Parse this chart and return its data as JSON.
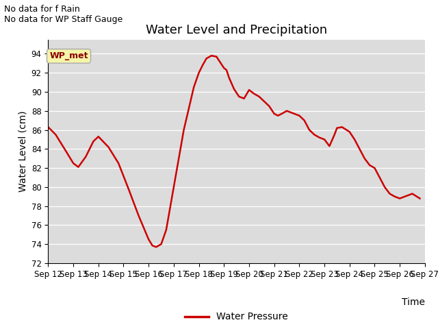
{
  "title": "Water Level and Precipitation",
  "xlabel": "Time",
  "ylabel": "Water Level (cm)",
  "ylim": [
    72,
    95.5
  ],
  "yticks": [
    72,
    74,
    76,
    78,
    80,
    82,
    84,
    86,
    88,
    90,
    92,
    94
  ],
  "background_color": "#dcdcdc",
  "line_color": "#cc0000",
  "line_width": 1.8,
  "legend_label": "Water Pressure",
  "annotation_text1": "No data for f Rain",
  "annotation_text2": "No data for WP Staff Gauge",
  "wp_met_label": "WP_met",
  "x_labels": [
    "Sep 12",
    "Sep 13",
    "Sep 14",
    "Sep 15",
    "Sep 16",
    "Sep 17",
    "Sep 18",
    "Sep 19",
    "Sep 20",
    "Sep 21",
    "Sep 22",
    "Sep 23",
    "Sep 24",
    "Sep 25",
    "Sep 26",
    "Sep 27"
  ],
  "x_values": [
    12,
    13,
    14,
    15,
    16,
    17,
    18,
    19,
    20,
    21,
    22,
    23,
    24,
    25,
    26,
    27
  ],
  "water_pressure_x": [
    12.0,
    12.3,
    12.7,
    13.0,
    13.2,
    13.5,
    13.8,
    14.0,
    14.4,
    14.8,
    15.2,
    15.6,
    16.0,
    16.15,
    16.3,
    16.5,
    16.7,
    17.0,
    17.4,
    17.8,
    18.0,
    18.15,
    18.3,
    18.5,
    18.7,
    19.0,
    19.1,
    19.2,
    19.4,
    19.6,
    19.8,
    20.0,
    20.2,
    20.4,
    20.6,
    20.8,
    21.0,
    21.15,
    21.3,
    21.5,
    21.7,
    22.0,
    22.2,
    22.4,
    22.6,
    22.8,
    23.0,
    23.2,
    23.4,
    23.5,
    23.7,
    24.0,
    24.2,
    24.4,
    24.6,
    24.8,
    25.0,
    25.2,
    25.4,
    25.6,
    25.8,
    26.0,
    26.2,
    26.5,
    26.8
  ],
  "water_pressure_y": [
    86.3,
    85.5,
    83.8,
    82.5,
    82.1,
    83.2,
    84.8,
    85.3,
    84.2,
    82.5,
    79.8,
    77.0,
    74.5,
    73.85,
    73.7,
    74.0,
    75.5,
    80.0,
    86.0,
    90.5,
    92.0,
    92.8,
    93.5,
    93.8,
    93.7,
    92.5,
    92.3,
    91.5,
    90.3,
    89.5,
    89.3,
    90.2,
    89.8,
    89.5,
    89.0,
    88.5,
    87.7,
    87.5,
    87.7,
    88.0,
    87.8,
    87.5,
    87.0,
    86.0,
    85.5,
    85.2,
    85.0,
    84.3,
    85.5,
    86.2,
    86.3,
    85.8,
    85.0,
    84.0,
    83.0,
    82.3,
    82.0,
    81.0,
    80.0,
    79.3,
    79.0,
    78.8,
    79.0,
    79.3,
    78.8
  ],
  "title_fontsize": 13,
  "axis_label_fontsize": 10,
  "tick_fontsize": 8.5,
  "annotation_fontsize": 9
}
